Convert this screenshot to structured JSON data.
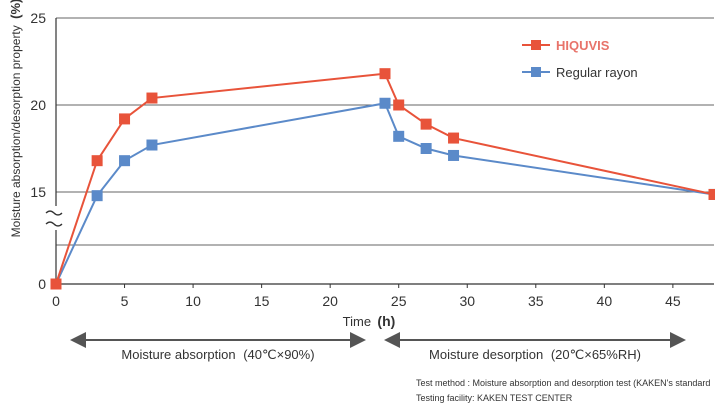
{
  "chart_data": {
    "type": "line",
    "xlabel": "Time",
    "xlabel_unit": "(h)",
    "ylabel": "Moisture absorption/desorption property",
    "ylabel_unit": "(%)",
    "x_ticks": [
      0,
      5,
      10,
      15,
      20,
      25,
      30,
      35,
      40,
      45
    ],
    "y_ticks": [
      "0",
      "15",
      "20",
      "25"
    ],
    "xlim": [
      0,
      48
    ],
    "y_axis_break": "0 to 15",
    "grid": "horizontal",
    "legend_position": "top-right",
    "series": [
      {
        "name": "HIQUVIS",
        "color": "#e8533a",
        "points": [
          [
            0,
            0
          ],
          [
            3,
            16.8
          ],
          [
            5,
            19.2
          ],
          [
            7,
            20.4
          ],
          [
            24,
            21.8
          ],
          [
            25,
            20.0
          ],
          [
            27,
            18.9
          ],
          [
            29,
            18.1
          ],
          [
            48,
            14.6
          ]
        ]
      },
      {
        "name": "Regular rayon",
        "color": "#5b8ac9",
        "points": [
          [
            0,
            0
          ],
          [
            3,
            14.4
          ],
          [
            5,
            16.8
          ],
          [
            7,
            17.7
          ],
          [
            24,
            20.1
          ],
          [
            25,
            18.2
          ],
          [
            27,
            17.5
          ],
          [
            29,
            17.1
          ],
          [
            48,
            14.6
          ]
        ]
      }
    ],
    "annotations": [
      {
        "label": "Moisture absorption",
        "condition": "(40℃×90%)",
        "from": 0,
        "to": 22.5
      },
      {
        "label": "Moisture desorption",
        "condition": "(20℃×65%RH)",
        "from": 24,
        "to": 45
      }
    ]
  },
  "notes": {
    "test_method": "Test method : Moisture absorption and desorption test (KAKEN's standard",
    "testing_facility": "Testing facility: KAKEN TEST CENTER"
  }
}
